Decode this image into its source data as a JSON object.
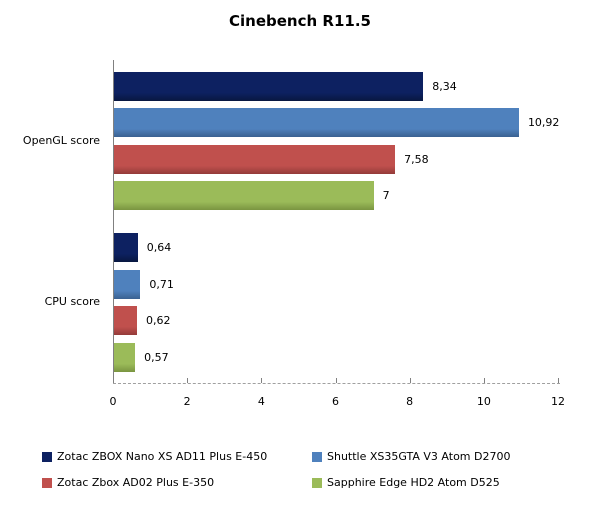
{
  "title": "Cinebench R11.5",
  "chart_data": {
    "type": "bar",
    "orientation": "horizontal",
    "title": "Cinebench R11.5",
    "categories": [
      "OpenGL score",
      "CPU score"
    ],
    "series": [
      {
        "name": "Zotac ZBOX Nano XS AD11 Plus E-450",
        "color": "#0d2161",
        "edge_color": "#081740",
        "values": [
          8.34,
          0.64
        ],
        "value_labels": [
          "8,34",
          "0,64"
        ]
      },
      {
        "name": "Shuttle XS35GTA V3 Atom D2700",
        "color": "#4f81bd",
        "edge_color": "#3a6191",
        "values": [
          10.92,
          0.71
        ],
        "value_labels": [
          "10,92",
          "0,71"
        ]
      },
      {
        "name": "Zotac Zbox AD02 Plus E-350",
        "color": "#c0504d",
        "edge_color": "#943b39",
        "values": [
          7.58,
          0.62
        ],
        "value_labels": [
          "7,58",
          "0,62"
        ]
      },
      {
        "name": "Sapphire Edge HD2 Atom D525",
        "color": "#9bbb59",
        "edge_color": "#7a9540",
        "values": [
          7,
          0.57
        ],
        "value_labels": [
          "7",
          "0,57"
        ]
      }
    ],
    "xlim": [
      0,
      12
    ],
    "xticks": [
      0,
      2,
      4,
      6,
      8,
      10,
      12
    ],
    "xtick_labels": [
      "0",
      "2",
      "4",
      "6",
      "8",
      "10",
      "12"
    ],
    "grid": false,
    "legend_position": "bottom",
    "axis_color": "#808080",
    "dashed_axis_color": "#a0a0a0",
    "text_color": "#000000"
  }
}
